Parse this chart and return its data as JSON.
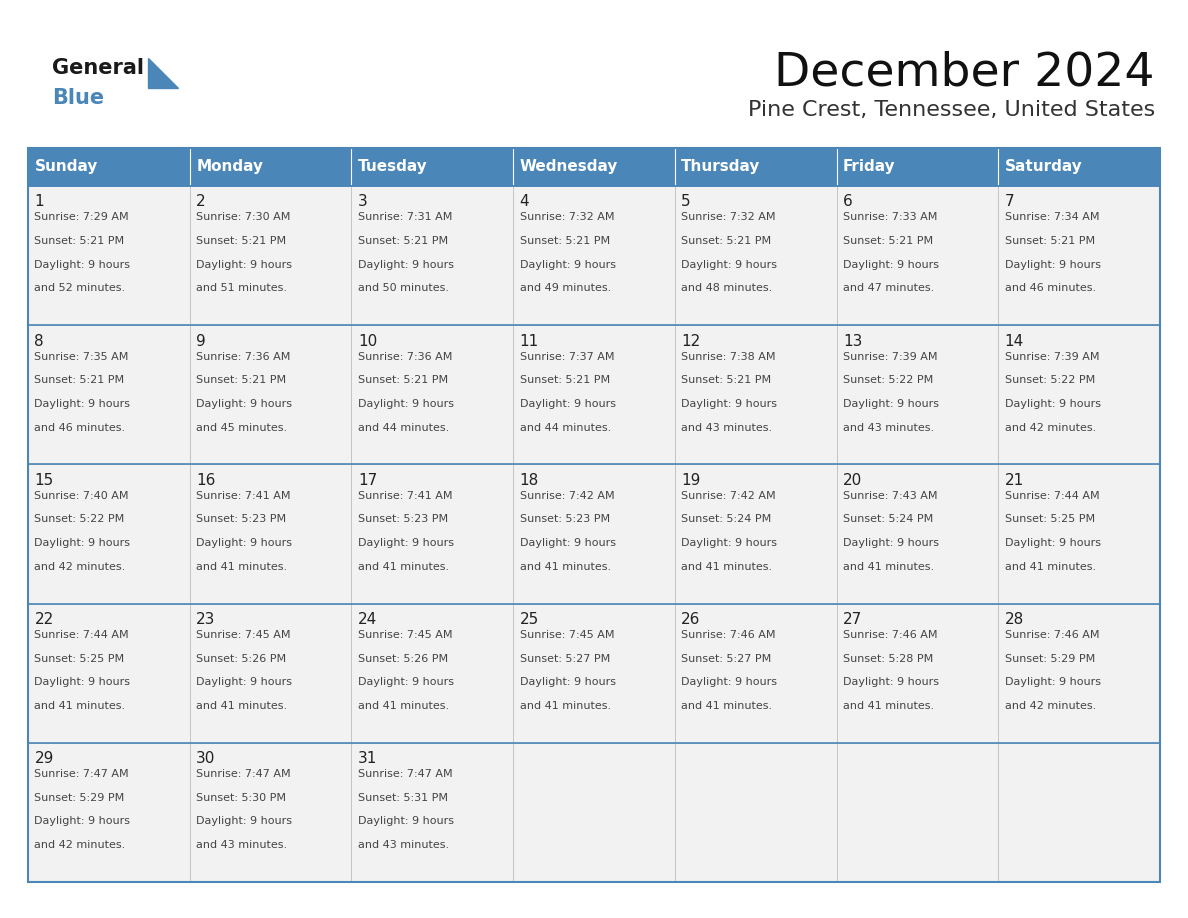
{
  "title": "December 2024",
  "subtitle": "Pine Crest, Tennessee, United States",
  "days_of_week": [
    "Sunday",
    "Monday",
    "Tuesday",
    "Wednesday",
    "Thursday",
    "Friday",
    "Saturday"
  ],
  "header_bg": "#4a86b8",
  "header_text": "#ffffff",
  "cell_bg": "#f2f2f2",
  "border_color": "#4a86b8",
  "cell_border_color": "#b0b0b0",
  "text_color": "#444444",
  "day_number_color": "#222222",
  "calendar_data": [
    [
      {
        "day": 1,
        "sunrise": "7:29 AM",
        "sunset": "5:21 PM",
        "daylight_hrs": 9,
        "daylight_min": "52 minutes."
      },
      {
        "day": 2,
        "sunrise": "7:30 AM",
        "sunset": "5:21 PM",
        "daylight_hrs": 9,
        "daylight_min": "51 minutes."
      },
      {
        "day": 3,
        "sunrise": "7:31 AM",
        "sunset": "5:21 PM",
        "daylight_hrs": 9,
        "daylight_min": "50 minutes."
      },
      {
        "day": 4,
        "sunrise": "7:32 AM",
        "sunset": "5:21 PM",
        "daylight_hrs": 9,
        "daylight_min": "49 minutes."
      },
      {
        "day": 5,
        "sunrise": "7:32 AM",
        "sunset": "5:21 PM",
        "daylight_hrs": 9,
        "daylight_min": "48 minutes."
      },
      {
        "day": 6,
        "sunrise": "7:33 AM",
        "sunset": "5:21 PM",
        "daylight_hrs": 9,
        "daylight_min": "47 minutes."
      },
      {
        "day": 7,
        "sunrise": "7:34 AM",
        "sunset": "5:21 PM",
        "daylight_hrs": 9,
        "daylight_min": "46 minutes."
      }
    ],
    [
      {
        "day": 8,
        "sunrise": "7:35 AM",
        "sunset": "5:21 PM",
        "daylight_hrs": 9,
        "daylight_min": "46 minutes."
      },
      {
        "day": 9,
        "sunrise": "7:36 AM",
        "sunset": "5:21 PM",
        "daylight_hrs": 9,
        "daylight_min": "45 minutes."
      },
      {
        "day": 10,
        "sunrise": "7:36 AM",
        "sunset": "5:21 PM",
        "daylight_hrs": 9,
        "daylight_min": "44 minutes."
      },
      {
        "day": 11,
        "sunrise": "7:37 AM",
        "sunset": "5:21 PM",
        "daylight_hrs": 9,
        "daylight_min": "44 minutes."
      },
      {
        "day": 12,
        "sunrise": "7:38 AM",
        "sunset": "5:21 PM",
        "daylight_hrs": 9,
        "daylight_min": "43 minutes."
      },
      {
        "day": 13,
        "sunrise": "7:39 AM",
        "sunset": "5:22 PM",
        "daylight_hrs": 9,
        "daylight_min": "43 minutes."
      },
      {
        "day": 14,
        "sunrise": "7:39 AM",
        "sunset": "5:22 PM",
        "daylight_hrs": 9,
        "daylight_min": "42 minutes."
      }
    ],
    [
      {
        "day": 15,
        "sunrise": "7:40 AM",
        "sunset": "5:22 PM",
        "daylight_hrs": 9,
        "daylight_min": "42 minutes."
      },
      {
        "day": 16,
        "sunrise": "7:41 AM",
        "sunset": "5:23 PM",
        "daylight_hrs": 9,
        "daylight_min": "41 minutes."
      },
      {
        "day": 17,
        "sunrise": "7:41 AM",
        "sunset": "5:23 PM",
        "daylight_hrs": 9,
        "daylight_min": "41 minutes."
      },
      {
        "day": 18,
        "sunrise": "7:42 AM",
        "sunset": "5:23 PM",
        "daylight_hrs": 9,
        "daylight_min": "41 minutes."
      },
      {
        "day": 19,
        "sunrise": "7:42 AM",
        "sunset": "5:24 PM",
        "daylight_hrs": 9,
        "daylight_min": "41 minutes."
      },
      {
        "day": 20,
        "sunrise": "7:43 AM",
        "sunset": "5:24 PM",
        "daylight_hrs": 9,
        "daylight_min": "41 minutes."
      },
      {
        "day": 21,
        "sunrise": "7:44 AM",
        "sunset": "5:25 PM",
        "daylight_hrs": 9,
        "daylight_min": "41 minutes."
      }
    ],
    [
      {
        "day": 22,
        "sunrise": "7:44 AM",
        "sunset": "5:25 PM",
        "daylight_hrs": 9,
        "daylight_min": "41 minutes."
      },
      {
        "day": 23,
        "sunrise": "7:45 AM",
        "sunset": "5:26 PM",
        "daylight_hrs": 9,
        "daylight_min": "41 minutes."
      },
      {
        "day": 24,
        "sunrise": "7:45 AM",
        "sunset": "5:26 PM",
        "daylight_hrs": 9,
        "daylight_min": "41 minutes."
      },
      {
        "day": 25,
        "sunrise": "7:45 AM",
        "sunset": "5:27 PM",
        "daylight_hrs": 9,
        "daylight_min": "41 minutes."
      },
      {
        "day": 26,
        "sunrise": "7:46 AM",
        "sunset": "5:27 PM",
        "daylight_hrs": 9,
        "daylight_min": "41 minutes."
      },
      {
        "day": 27,
        "sunrise": "7:46 AM",
        "sunset": "5:28 PM",
        "daylight_hrs": 9,
        "daylight_min": "41 minutes."
      },
      {
        "day": 28,
        "sunrise": "7:46 AM",
        "sunset": "5:29 PM",
        "daylight_hrs": 9,
        "daylight_min": "42 minutes."
      }
    ],
    [
      {
        "day": 29,
        "sunrise": "7:47 AM",
        "sunset": "5:29 PM",
        "daylight_hrs": 9,
        "daylight_min": "42 minutes."
      },
      {
        "day": 30,
        "sunrise": "7:47 AM",
        "sunset": "5:30 PM",
        "daylight_hrs": 9,
        "daylight_min": "43 minutes."
      },
      {
        "day": 31,
        "sunrise": "7:47 AM",
        "sunset": "5:31 PM",
        "daylight_hrs": 9,
        "daylight_min": "43 minutes."
      },
      null,
      null,
      null,
      null
    ]
  ],
  "logo_general_color": "#1a1a1a",
  "logo_blue_color": "#4a86b8",
  "logo_triangle_color": "#4a86b8"
}
